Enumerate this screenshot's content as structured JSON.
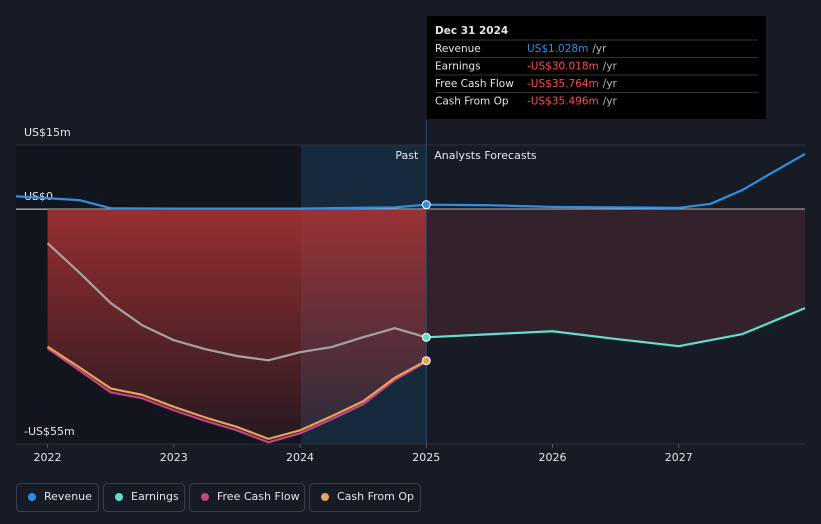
{
  "chart_data": {
    "type": "line",
    "xlim": [
      2021.75,
      2028
    ],
    "xticks": [
      2022,
      2023,
      2024,
      2025,
      2026,
      2027
    ],
    "ylim": [
      -55,
      15
    ],
    "yticks": [
      {
        "value": 15,
        "label": "US$15m"
      },
      {
        "value": 0,
        "label": "US$0"
      },
      {
        "value": -55,
        "label": "-US$55m"
      }
    ],
    "grid": true,
    "forecast_start": 2025,
    "past_label": "Past",
    "forecast_label": "Analysts Forecasts",
    "series": [
      {
        "name": "Revenue",
        "color": "#2f8fe3",
        "x": [
          2021.75,
          2022.25,
          2022.5,
          2023,
          2024,
          2024.75,
          2025,
          2025.5,
          2026,
          2027,
          2027.25,
          2027.5,
          2027.75,
          2028
        ],
        "values": [
          3.0,
          2.1,
          0.2,
          0.1,
          0.1,
          0.4,
          1.028,
          0.9,
          0.5,
          0.3,
          1.2,
          4.4,
          8.7,
          12.9
        ]
      },
      {
        "name": "Earnings",
        "color": "#5fe0cc",
        "past_color": "#a3a3a3",
        "x": [
          2022,
          2022.25,
          2022.5,
          2022.75,
          2023,
          2023.25,
          2023.5,
          2023.75,
          2024,
          2024.25,
          2024.5,
          2024.75,
          2025,
          2025.5,
          2026,
          2026.5,
          2027,
          2027.5,
          2028
        ],
        "values": [
          -8.0,
          -14.8,
          -22.0,
          -27.2,
          -30.7,
          -32.8,
          -34.4,
          -35.4,
          -33.5,
          -32.3,
          -30.0,
          -27.9,
          -30.018,
          -29.3,
          -28.6,
          -30.4,
          -32.1,
          -29.3,
          -23.2
        ]
      },
      {
        "name": "Free Cash Flow",
        "color": "#c2467f",
        "x": [
          2022,
          2022.25,
          2022.5,
          2022.75,
          2023,
          2023.25,
          2023.5,
          2023.75,
          2024,
          2024.25,
          2024.5,
          2024.75,
          2025
        ],
        "values": [
          -32.6,
          -37.7,
          -42.9,
          -44.3,
          -47.1,
          -49.6,
          -51.8,
          -54.6,
          -52.5,
          -49.2,
          -45.7,
          -40.0,
          -35.764
        ]
      },
      {
        "name": "Cash From Op",
        "color": "#e8a25a",
        "x": [
          2022,
          2022.25,
          2022.5,
          2022.75,
          2023,
          2023.25,
          2023.5,
          2023.75,
          2024,
          2024.25,
          2024.5,
          2024.75,
          2025
        ],
        "values": [
          -32.2,
          -37.0,
          -42.0,
          -43.5,
          -46.3,
          -48.8,
          -51.0,
          -53.8,
          -51.8,
          -48.5,
          -45.0,
          -39.5,
          -35.496
        ]
      }
    ],
    "tooltip": {
      "date": "Dec 31 2024",
      "rows": [
        {
          "name": "Revenue",
          "value_label": "US$1.028m",
          "unit": "/yr",
          "color": "#2f8fe3"
        },
        {
          "name": "Earnings",
          "value_label": "-US$30.018m",
          "unit": "/yr",
          "color": "#ff4d4d"
        },
        {
          "name": "Free Cash Flow",
          "value_label": "-US$35.764m",
          "unit": "/yr",
          "color": "#ff4d4d"
        },
        {
          "name": "Cash From Op",
          "value_label": "-US$35.496m",
          "unit": "/yr",
          "color": "#ff4d4d"
        }
      ]
    }
  }
}
